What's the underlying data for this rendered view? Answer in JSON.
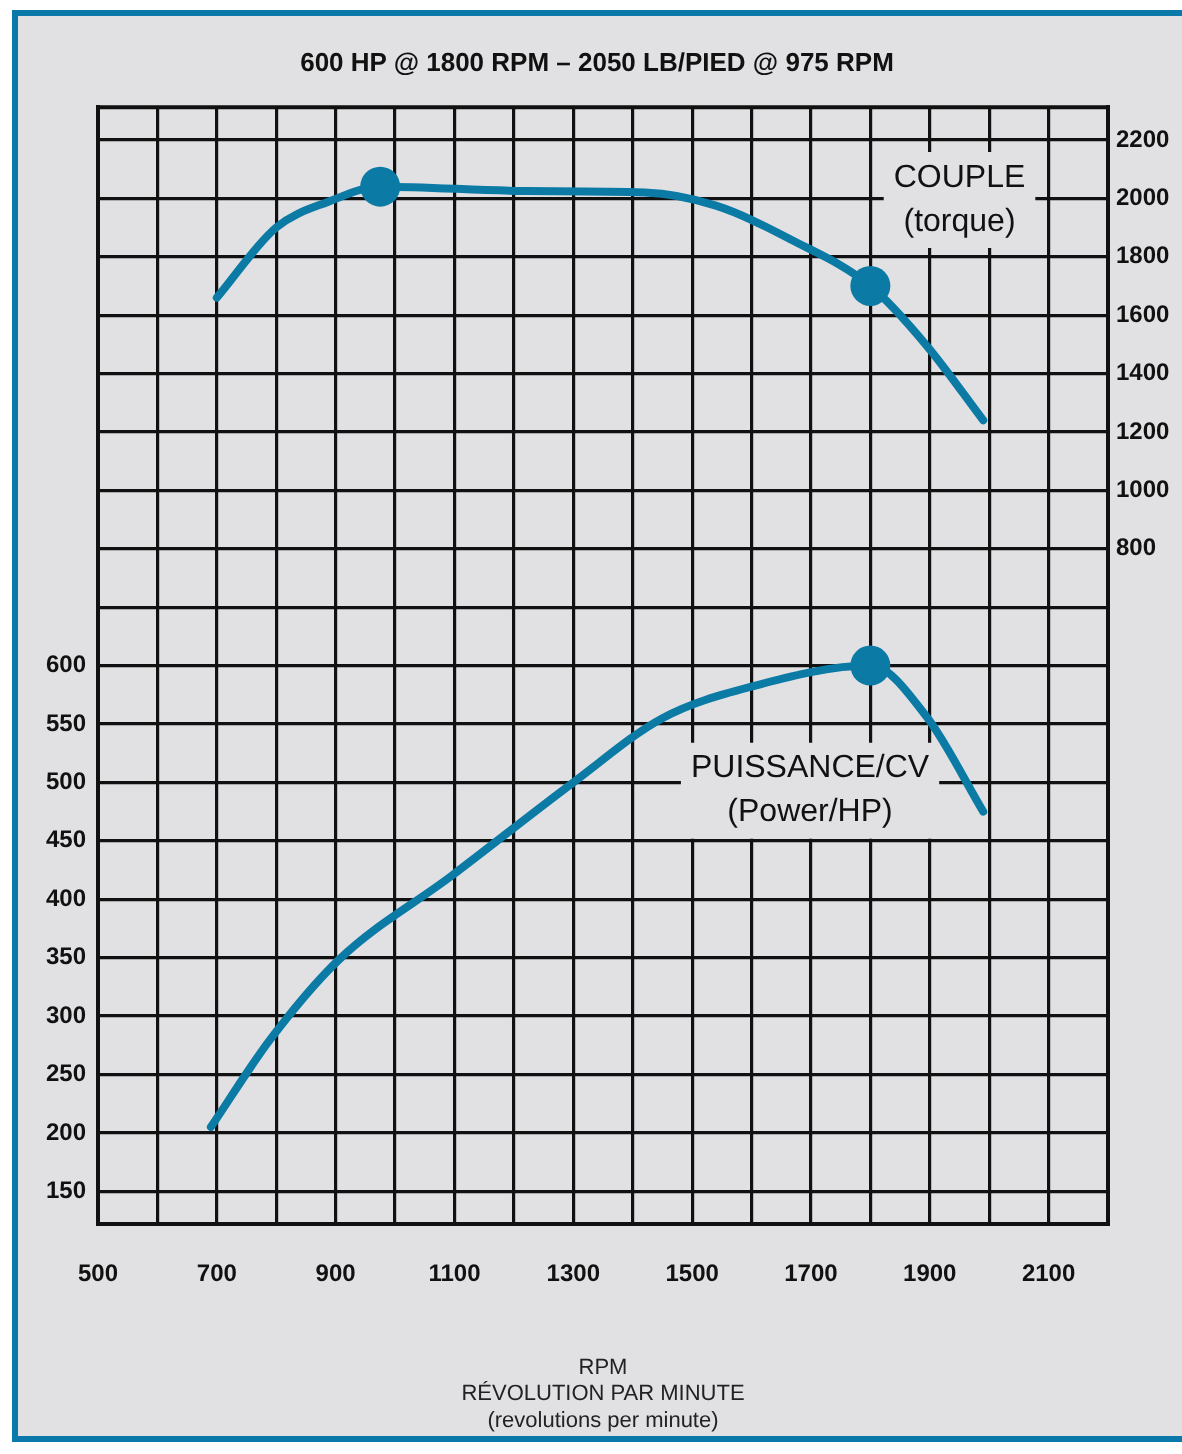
{
  "chart_data": {
    "type": "line",
    "title": "600 HP @ 1800 RPM – 2050 LB/PIED @ 975 RPM",
    "xlabel": "RPM\nRÉVOLUTION PAR MINUTE\n(revolutions per minute)",
    "xlim": [
      500,
      2200
    ],
    "xticks": [
      500,
      {
        "value": 600,
        "label": null
      },
      700,
      {
        "value": 800,
        "label": null
      },
      900,
      {
        "value": 1000,
        "label": null
      },
      1100,
      {
        "value": 1200,
        "label": null
      },
      1300,
      {
        "value": 1400,
        "label": null
      },
      1500,
      {
        "value": 1600,
        "label": null
      },
      1700,
      {
        "value": 1800,
        "label": null
      },
      1900,
      {
        "value": 2000,
        "label": null
      },
      2100
    ],
    "ylim": [
      122,
      1078
    ],
    "yticks": [
      150,
      200,
      250,
      300,
      350,
      400,
      450,
      500,
      550,
      600
    ],
    "y2lim": [
      -1512,
      2312
    ],
    "y2ticks": [
      {
        "value": 600,
        "label": null
      },
      800,
      1000,
      1200,
      1400,
      1600,
      1800,
      2000,
      2200
    ],
    "grid": true,
    "legend": false,
    "marker": "none",
    "series": [
      {
        "name": "COUPLE\n(torque)",
        "axis": "y2",
        "color": "#0b7ba5",
        "x": [
          700,
          800,
          890,
          975,
          1220,
          1420,
          1540,
          1665,
          1800,
          1895,
          1990
        ],
        "values": [
          1660,
          1900,
          1990,
          2040,
          2025,
          2020,
          1975,
          1860,
          1700,
          1495,
          1240
        ]
      },
      {
        "name": "PUISSANCE/CV\n(Power/HP)",
        "color": "#0b7ba5",
        "x": [
          690,
          790,
          905,
          1095,
          1300,
          1450,
          1600,
          1800,
          1895,
          1990
        ],
        "values": [
          205,
          280,
          348,
          420,
          500,
          555,
          582,
          600,
          556,
          475
        ]
      },
      {
        "type": "scatter",
        "axis": "y2",
        "marker": "circle",
        "color": "#0b7ba5",
        "x": [
          975,
          1800
        ],
        "values": [
          2040,
          1700
        ]
      },
      {
        "type": "scatter",
        "marker": "circle",
        "color": "#0b7ba5",
        "x": [
          1800
        ],
        "values": [
          600
        ]
      }
    ]
  }
}
